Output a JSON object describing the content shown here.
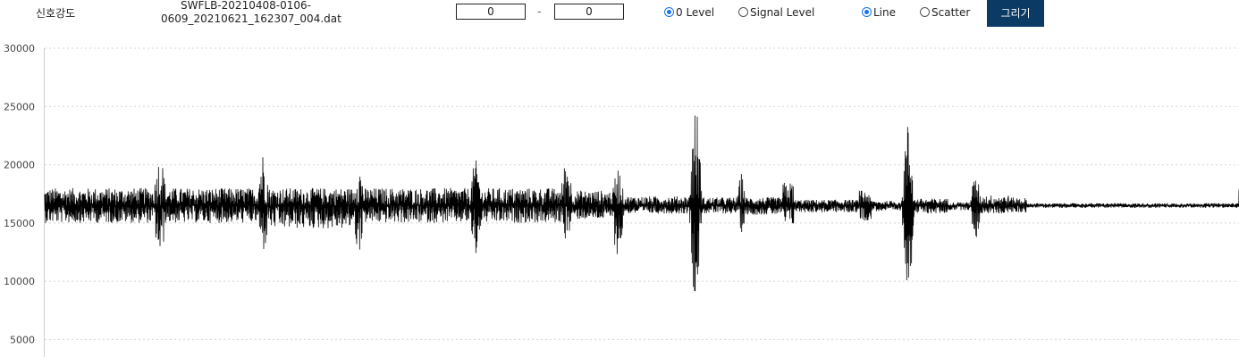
{
  "toolbar": {
    "signal_label": "신호강도",
    "filename_line1": "SWFLB-20210408-0106-",
    "filename_line2": "0609_20210621_162307_004.dat",
    "range_from": "0",
    "range_separator": "-",
    "range_to": "0",
    "level_options": [
      {
        "label": "0 Level",
        "selected": true
      },
      {
        "label": "Signal Level",
        "selected": false
      }
    ],
    "plot_options": [
      {
        "label": "Line",
        "selected": true
      },
      {
        "label": "Scatter",
        "selected": false
      }
    ],
    "draw_button": "그리기",
    "accent_color": "#0b3a64"
  },
  "chart_data": {
    "type": "line",
    "title": "",
    "xlabel": "",
    "ylabel": "",
    "ylim": [
      3500,
      30000
    ],
    "yticks": [
      5000,
      10000,
      15000,
      20000,
      25000,
      30000
    ],
    "ytick_labels": [
      "5000",
      "10000",
      "15000",
      "20000",
      "25000",
      "30000"
    ],
    "grid": "horizontal dotted",
    "line_color": "#000000",
    "baseline": 16500,
    "segments": [
      {
        "x": [
          0,
          9.1
        ],
        "min": 15000,
        "max": 18000
      },
      {
        "x": [
          9.1,
          10.2
        ],
        "min": 12000,
        "max": 20700
      },
      {
        "x": [
          10.2,
          17.8
        ],
        "min": 15000,
        "max": 18000
      },
      {
        "x": [
          17.8,
          18.8
        ],
        "min": 12500,
        "max": 21200
      },
      {
        "x": [
          18.8,
          25.8
        ],
        "min": 14500,
        "max": 18000
      },
      {
        "x": [
          25.8,
          26.8
        ],
        "min": 12500,
        "max": 20000
      },
      {
        "x": [
          26.8,
          35.6
        ],
        "min": 15000,
        "max": 18000
      },
      {
        "x": [
          35.6,
          36.6
        ],
        "min": 12000,
        "max": 20400
      },
      {
        "x": [
          36.6,
          43.2
        ],
        "min": 15000,
        "max": 18000
      },
      {
        "x": [
          43.2,
          44.2
        ],
        "min": 13500,
        "max": 20600
      },
      {
        "x": [
          44.2,
          47.5
        ],
        "min": 15300,
        "max": 17800
      },
      {
        "x": [
          47.5,
          48.5
        ],
        "min": 12000,
        "max": 19800
      },
      {
        "x": [
          48.5,
          54.0
        ],
        "min": 15800,
        "max": 17300
      },
      {
        "x": [
          54.0,
          55.0
        ],
        "min": 8600,
        "max": 25100
      },
      {
        "x": [
          55.0,
          58.0
        ],
        "min": 15800,
        "max": 17200
      },
      {
        "x": [
          58.0,
          58.7
        ],
        "min": 14200,
        "max": 19300
      },
      {
        "x": [
          58.7,
          61.8
        ],
        "min": 15700,
        "max": 17200
      },
      {
        "x": [
          61.8,
          62.7
        ],
        "min": 14800,
        "max": 18500
      },
      {
        "x": [
          62.7,
          68.2
        ],
        "min": 15900,
        "max": 17000
      },
      {
        "x": [
          68.2,
          69.2
        ],
        "min": 15200,
        "max": 17800
      },
      {
        "x": [
          69.2,
          71.8
        ],
        "min": 16000,
        "max": 16900
      },
      {
        "x": [
          71.8,
          72.8
        ],
        "min": 9700,
        "max": 23700
      },
      {
        "x": [
          72.8,
          75.6
        ],
        "min": 15800,
        "max": 17100
      },
      {
        "x": [
          75.6,
          77.5
        ],
        "min": 16100,
        "max": 16800
      },
      {
        "x": [
          77.5,
          78.4
        ],
        "min": 13600,
        "max": 19000
      },
      {
        "x": [
          78.4,
          80.8
        ],
        "min": 15800,
        "max": 17400
      },
      {
        "x": [
          80.8,
          82.2
        ],
        "min": 15900,
        "max": 17200
      },
      {
        "x": [
          82.2,
          100
        ],
        "min": 16300,
        "max": 16700
      },
      {
        "x": [
          100,
          100.8
        ],
        "min": 15400,
        "max": 18700
      }
    ]
  }
}
